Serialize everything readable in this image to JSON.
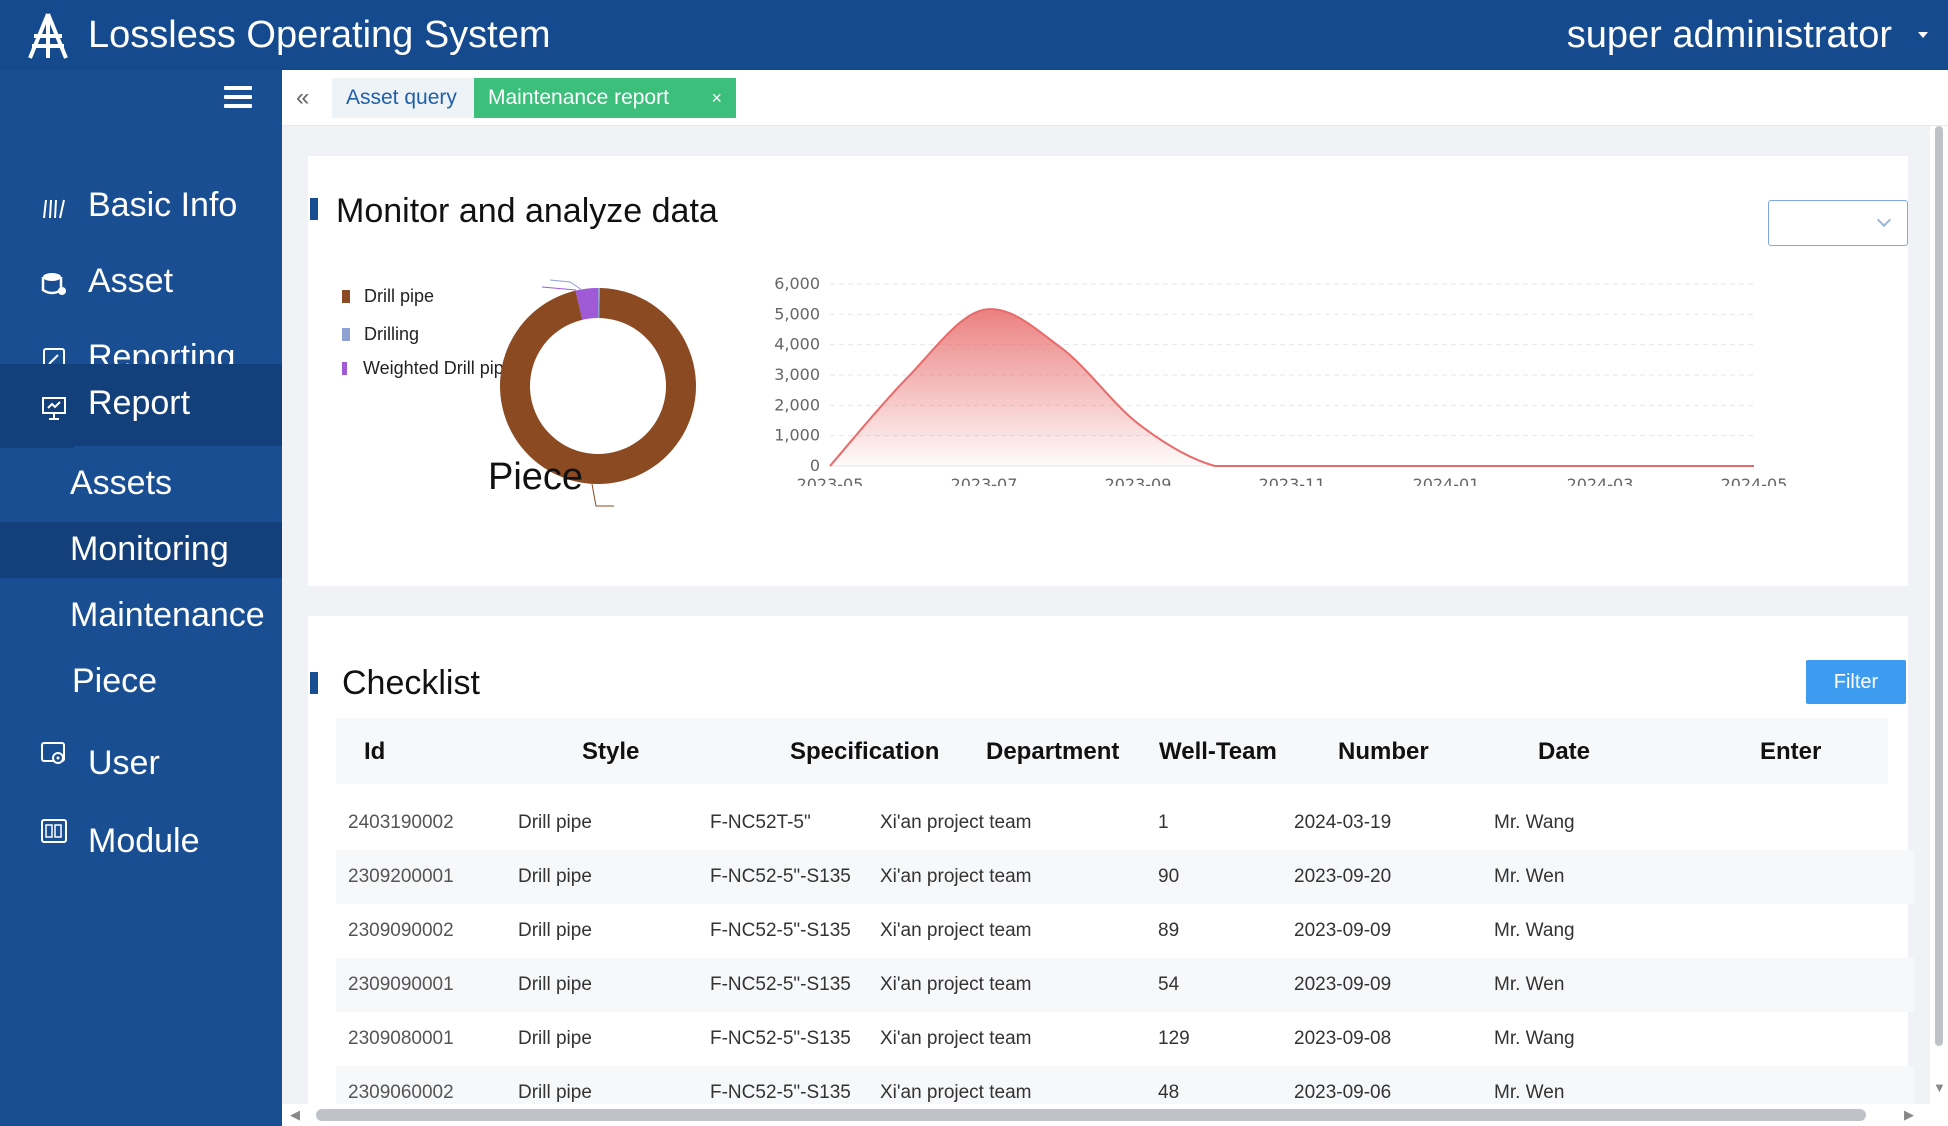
{
  "header": {
    "app_title": "Lossless Operating System",
    "user": "super administrator",
    "logo_icon": "tower-logo-icon",
    "brand_color": "#164a8e"
  },
  "sidebar": {
    "items": [
      {
        "label": "Basic Info",
        "icon": "books-icon"
      },
      {
        "label": "Asset",
        "icon": "database-icon"
      },
      {
        "label": "Reporting",
        "icon": "edit-icon"
      },
      {
        "label": "Report",
        "icon": "presentation-icon"
      },
      {
        "label": "User",
        "icon": "user-settings-icon"
      },
      {
        "label": "Module",
        "icon": "module-icon"
      }
    ],
    "sub_items": [
      {
        "label": "Assets"
      },
      {
        "label": "Monitoring"
      },
      {
        "label": "Maintenance"
      },
      {
        "label": "Piece"
      }
    ]
  },
  "tabs": [
    {
      "label": "Asset query"
    },
    {
      "label": "Maintenance report",
      "close": "×"
    }
  ],
  "monitor": {
    "title": "Monitor and analyze data",
    "dropdown_value": "",
    "legend": [
      {
        "label": "Drill pipe",
        "color": "#8b4a22"
      },
      {
        "label": "Drilling",
        "color": "#8fa0d2"
      },
      {
        "label": "Weighted  Drill pipe",
        "color": "#a05ad8"
      }
    ],
    "donut_label": "Piece"
  },
  "checklist": {
    "title": "Checklist",
    "filter_label": "Filter",
    "columns": [
      "Id",
      "Style",
      "Specification",
      "Department",
      "Well-Team",
      "Number",
      "Date",
      "Enter"
    ],
    "rows": [
      {
        "id": "2403190002",
        "style": "Drill pipe",
        "spec": "F-NC52T-5\"",
        "department": "Xi'an project team",
        "number": "1",
        "date": "2024-03-19",
        "enter": "Mr.  Wang"
      },
      {
        "id": "2309200001",
        "style": "Drill pipe",
        "spec": "F-NC52-5\"-S135",
        "department": "Xi'an project team",
        "number": "90",
        "date": "2023-09-20",
        "enter": "Mr.  Wen"
      },
      {
        "id": "2309090002",
        "style": "Drill pipe",
        "spec": "F-NC52-5\"-S135",
        "department": "Xi'an project team",
        "number": "89",
        "date": "2023-09-09",
        "enter": "Mr.  Wang"
      },
      {
        "id": "2309090001",
        "style": "Drill pipe",
        "spec": "F-NC52-5\"-S135",
        "department": "Xi'an project team",
        "number": "54",
        "date": "2023-09-09",
        "enter": "Mr.  Wen"
      },
      {
        "id": "2309080001",
        "style": "Drill pipe",
        "spec": "F-NC52-5\"-S135",
        "department": "Xi'an project team",
        "number": "129",
        "date": "2023-09-08",
        "enter": "Mr.  Wang"
      },
      {
        "id": "2309060002",
        "style": "Drill pipe",
        "spec": "F-NC52-5\"-S135",
        "department": "Xi'an project team",
        "number": "48",
        "date": "2023-09-06",
        "enter": "Mr.  Wen"
      }
    ]
  },
  "chart_data": [
    {
      "type": "pie",
      "title": "",
      "categories": [
        "Drill pipe",
        "Drilling",
        "Weighted  Drill pipe"
      ],
      "values": [
        96,
        0.3,
        3.7
      ],
      "colors": [
        "#8b4a22",
        "#8fa0d2",
        "#a05ad8"
      ],
      "center_label": "Piece",
      "legend_position": "top-left"
    },
    {
      "type": "area",
      "title": "",
      "xlabel": "",
      "ylabel": "",
      "x_ticks": [
        "2023-05",
        "2023-07",
        "2023-09",
        "2023-11",
        "2024-01",
        "2024-03",
        "2024-05"
      ],
      "y_ticks": [
        "0",
        "1,000",
        "2,000",
        "3,000",
        "4,000",
        "5,000",
        "6,000"
      ],
      "ylim": [
        0,
        6000
      ],
      "x": [
        "2023-05",
        "2023-06",
        "2023-07",
        "2023-08",
        "2023-09",
        "2023-10",
        "2023-11",
        "2023-12",
        "2024-01",
        "2024-02",
        "2024-03",
        "2024-04",
        "2024-05"
      ],
      "values": [
        0,
        2900,
        5150,
        3900,
        1400,
        0,
        0,
        0,
        0,
        0,
        0,
        0,
        0
      ],
      "color": "#e86a6a",
      "grid": true
    }
  ]
}
